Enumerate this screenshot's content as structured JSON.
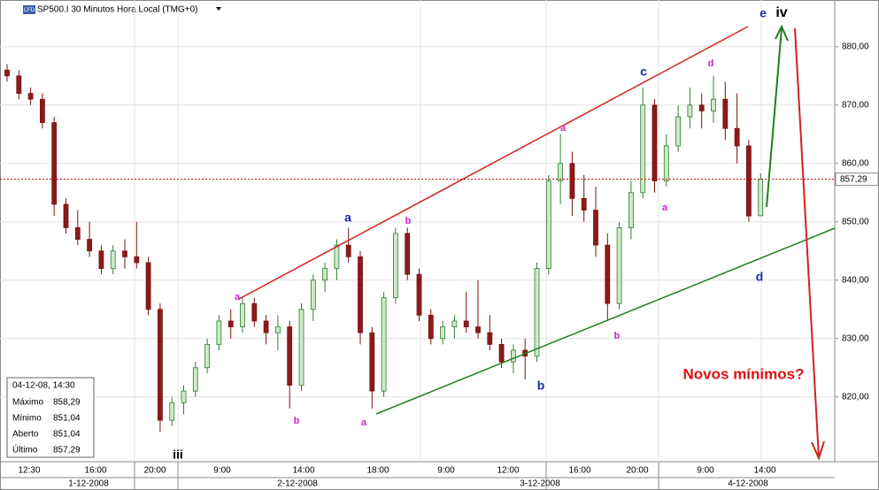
{
  "chart_data": {
    "type": "candlestick",
    "title": "SP500.I 30 Minutos Hora Local (TMG+0)",
    "badge": "CFD",
    "ylim": [
      808.9,
      888.0
    ],
    "yticks": [
      {
        "value": 820,
        "label": "820,00"
      },
      {
        "value": 830,
        "label": "830,00"
      },
      {
        "value": 840,
        "label": "840,00"
      },
      {
        "value": 850,
        "label": "850,00"
      },
      {
        "value": 860,
        "label": "860,00"
      },
      {
        "value": 870,
        "label": "870,00"
      },
      {
        "value": 880,
        "label": "880,00"
      }
    ],
    "last_price": {
      "value": 857.29,
      "label": "857,29"
    },
    "open": [
      876,
      875,
      872,
      871,
      867,
      853,
      849,
      847,
      845,
      842,
      845,
      844,
      843,
      835,
      816,
      819,
      821,
      825,
      829,
      833,
      832,
      836,
      833,
      831,
      832,
      822,
      835,
      840,
      842,
      846,
      844,
      831,
      821,
      837,
      848,
      841,
      834,
      830,
      832,
      833,
      832,
      831,
      829,
      826,
      828,
      827,
      842,
      857,
      860,
      854,
      852,
      846,
      836,
      849,
      855,
      870,
      857,
      863,
      868,
      870,
      869,
      871,
      866,
      863,
      851.04
    ],
    "high": [
      877,
      876,
      873,
      872,
      868,
      854,
      852,
      850,
      846,
      846,
      847,
      850,
      844,
      836,
      820,
      822,
      826,
      830,
      834,
      835,
      837,
      837,
      834,
      834,
      833,
      836,
      841,
      843,
      847,
      849,
      845,
      832,
      838,
      849,
      849,
      842,
      835,
      833,
      834,
      838,
      840,
      834,
      830,
      829,
      830,
      843,
      858,
      865,
      862,
      858,
      856,
      848,
      850,
      857,
      873,
      871,
      865,
      870,
      873,
      872,
      875,
      874,
      872,
      864,
      858.29
    ],
    "low": [
      874,
      871,
      870,
      866,
      851,
      848,
      846,
      844,
      841,
      841,
      842,
      842,
      834,
      814,
      815,
      817,
      820,
      824,
      828,
      830,
      831,
      832,
      829,
      828,
      818,
      821,
      833,
      838,
      840,
      843,
      829,
      818,
      820,
      836,
      840,
      833,
      829,
      829,
      830,
      831,
      830,
      828,
      825,
      824,
      823,
      826,
      841,
      853,
      851,
      850,
      844,
      833,
      835,
      847,
      854,
      855,
      856,
      862,
      866,
      866,
      867,
      864,
      860,
      850,
      851.04
    ],
    "close": [
      875,
      872,
      871,
      867,
      853,
      849,
      847,
      845,
      842,
      845,
      844,
      843,
      835,
      816,
      819,
      821,
      825,
      829,
      833,
      832,
      836,
      833,
      831,
      832,
      822,
      835,
      840,
      842,
      846,
      844,
      831,
      821,
      837,
      848,
      841,
      834,
      830,
      832,
      833,
      832,
      831,
      829,
      826,
      828,
      827,
      842,
      857,
      860,
      854,
      852,
      846,
      836,
      849,
      855,
      870,
      857,
      863,
      868,
      870,
      869,
      871,
      866,
      863,
      851,
      857.29
    ],
    "time_labels": [
      "12:30",
      "16:00",
      "20:00",
      "9:00",
      "14:00",
      "18:00",
      "9:00",
      "12:00",
      "16:00",
      "20:00",
      "9:00",
      "14:00"
    ],
    "date_labels": [
      "1-12-2008",
      "2-12-2008",
      "3-12-2008",
      "4-12-2008"
    ],
    "annotations": [
      "iv",
      "e",
      "c",
      "d",
      "a",
      "b",
      "a",
      "a",
      "a",
      "b",
      "a",
      "b",
      "b",
      "d",
      "iii",
      "Novos mínimos?"
    ],
    "info_box": {
      "date": "04-12-08, 14:30",
      "rows": [
        [
          "Máximo",
          "858,29"
        ],
        [
          "Mínimo",
          "851,04"
        ],
        [
          "Aberto",
          "851,04"
        ],
        [
          "Último",
          "857,29"
        ]
      ]
    }
  }
}
